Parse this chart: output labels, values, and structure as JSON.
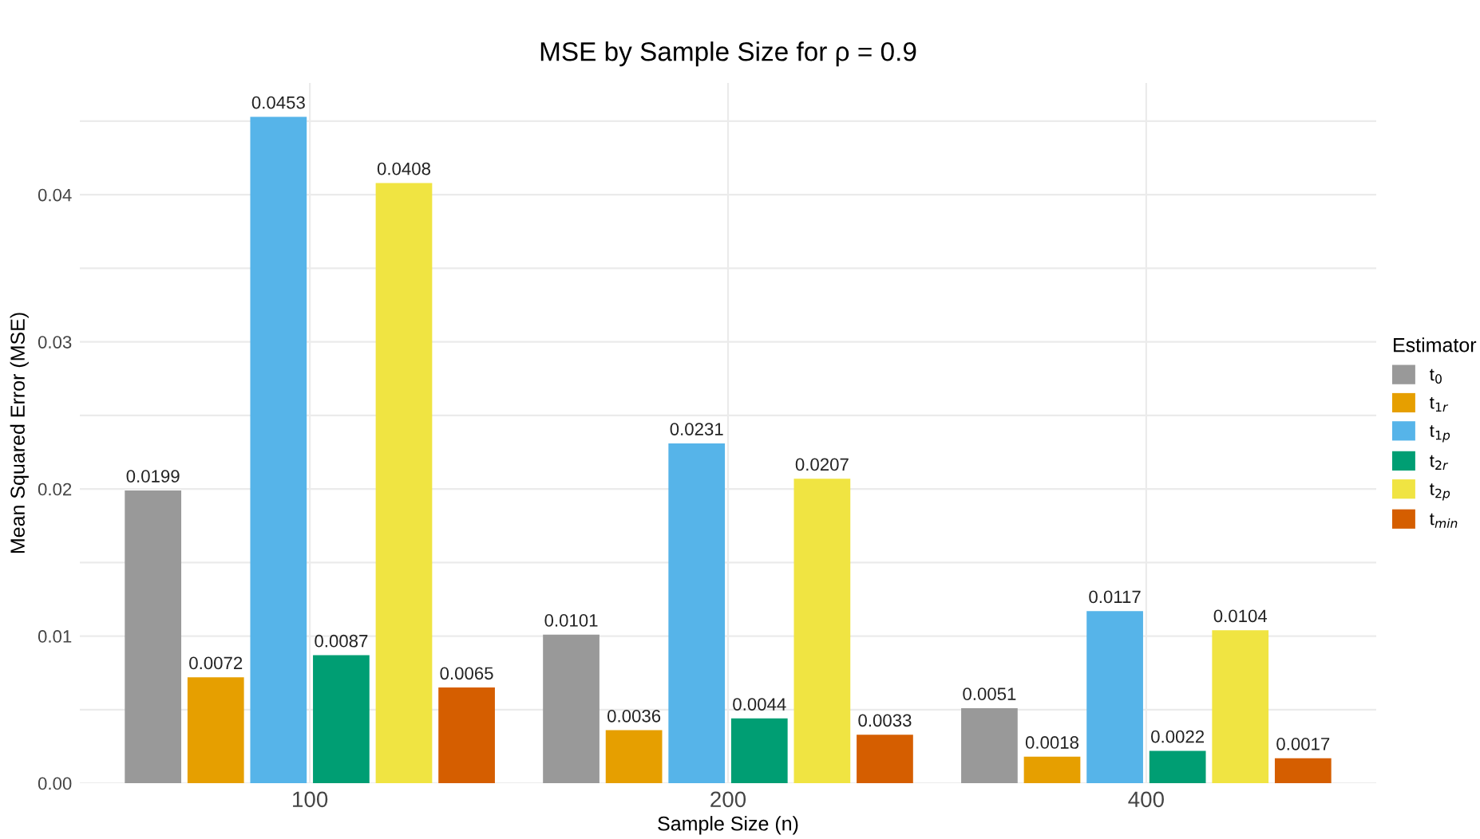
{
  "chart_data": {
    "type": "bar",
    "title": "MSE by Sample Size for ρ = 0.9",
    "xlabel": "Sample Size (n)",
    "ylabel": "Mean Squared Error (MSE)",
    "legend_title": "Estimator",
    "categories": [
      "100",
      "200",
      "400"
    ],
    "series": [
      {
        "name": "t$_{0}$",
        "color": "#999999",
        "values": [
          0.0199,
          0.0101,
          0.0051
        ]
      },
      {
        "name": "t$_{1r}$",
        "color": "#e69f00",
        "values": [
          0.0072,
          0.0036,
          0.0018
        ]
      },
      {
        "name": "t$_{1p}$",
        "color": "#56b4e9",
        "values": [
          0.0453,
          0.0231,
          0.0117
        ]
      },
      {
        "name": "t$_{2r}$",
        "color": "#009e73",
        "values": [
          0.0087,
          0.0044,
          0.0022
        ]
      },
      {
        "name": "t$_{2p}$",
        "color": "#f0e442",
        "values": [
          0.0408,
          0.0207,
          0.0104
        ]
      },
      {
        "name": "t$_{min}$",
        "color": "#d55e00",
        "values": [
          0.0065,
          0.0033,
          0.0017
        ]
      }
    ],
    "ylim": [
      0,
      0.0476
    ],
    "yticks": [
      {
        "value": 0,
        "label": "0.00"
      },
      {
        "value": 0.005,
        "label": null
      },
      {
        "value": 0.01,
        "label": "0.01"
      },
      {
        "value": 0.015,
        "label": null
      },
      {
        "value": 0.02,
        "label": "0.02"
      },
      {
        "value": 0.025,
        "label": null
      },
      {
        "value": 0.03,
        "label": "0.03"
      },
      {
        "value": 0.035,
        "label": null
      },
      {
        "value": 0.04,
        "label": "0.04"
      },
      {
        "value": 0.045,
        "label": null
      }
    ],
    "grid": true,
    "legend": "right",
    "data_labels": true
  }
}
